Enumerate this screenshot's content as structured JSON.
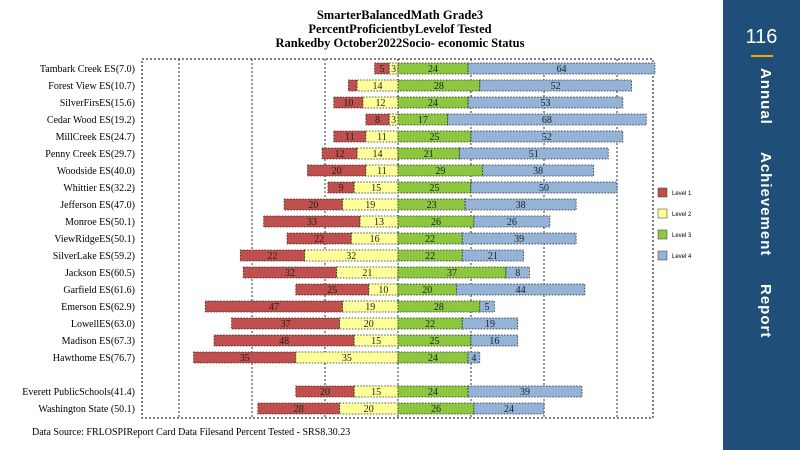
{
  "chart_data": {
    "type": "bar",
    "stacked": "diverging",
    "title_lines": [
      "SmarterBalancedMath Grade3",
      "PercentProficientbyLevelof Tested",
      "Rankedby October2022Socio- economic Status"
    ],
    "categories": [
      "Tambark Creek ES(7.0)",
      "Forest View ES(10.7)",
      "SilverFirsES(15.6)",
      "Cedar Wood ES(19.2)",
      "MillCreek ES(24.7)",
      "Penny Creek ES(29.7)",
      "Woodside ES(40.0)",
      "Whittier ES(32.2)",
      "Jefferson   ES(47.0)",
      "Monroe  ES(50.1)",
      "ViewRidgeES(50.1)",
      "SilverLake ES(59.2)",
      "Jackson ES(60.5)",
      "Garfield  ES(61.6)",
      "Emerson ES(62.9)",
      "LowellES(63.0)",
      "Madison ES(67.3)",
      "Hawthome  ES(76.7)",
      "",
      "Everett  PublicSchools(41.4)",
      "Washington State (50.1)"
    ],
    "series": [
      {
        "name": "Level 1",
        "color": "#c0504d",
        "values": [
          5,
          3,
          10,
          8,
          11,
          12,
          20,
          9,
          20,
          33,
          22,
          22,
          32,
          25,
          47,
          37,
          48,
          35,
          null,
          20,
          28
        ]
      },
      {
        "name": "Level 2",
        "color": "#ffff99",
        "values": [
          3,
          14,
          12,
          3,
          11,
          14,
          11,
          15,
          19,
          13,
          16,
          32,
          21,
          10,
          19,
          20,
          15,
          35,
          null,
          15,
          20
        ]
      },
      {
        "name": "Level 3",
        "color": "#8dc63f",
        "values": [
          24,
          28,
          24,
          17,
          25,
          21,
          29,
          25,
          23,
          26,
          22,
          22,
          37,
          20,
          28,
          22,
          25,
          24,
          null,
          24,
          26
        ]
      },
      {
        "name": "Level 4",
        "color": "#95b3d7",
        "values": [
          64,
          52,
          53,
          68,
          52,
          51,
          38,
          50,
          38,
          26,
          39,
          21,
          8,
          44,
          5,
          19,
          16,
          4,
          null,
          39,
          24
        ]
      }
    ],
    "data_labels": {
      "Level 1": [
        "5",
        "",
        "10",
        "8",
        "11",
        "12",
        "20",
        "9",
        "20",
        "33",
        "22",
        "22",
        "32",
        "25",
        "47",
        "37",
        "48",
        "35",
        "",
        "20",
        "28"
      ],
      "Level 2": [
        "3",
        "14",
        "12",
        "3",
        "11",
        "14",
        "11",
        "15",
        "19",
        "13",
        "16",
        "32",
        "21",
        "10",
        "19",
        "20",
        "15",
        "35",
        "",
        "15",
        "20"
      ],
      "Level 3": [
        "24",
        "28",
        "24",
        "17",
        "25",
        "21",
        "29",
        "25",
        "23",
        "26",
        "22",
        "22",
        "37",
        "20",
        "28",
        "22",
        "25",
        "24",
        "",
        "24",
        "26"
      ],
      "Level 4": [
        "64",
        "52",
        "53",
        "68",
        "52",
        "51",
        "38",
        "50",
        "38",
        "26",
        "39",
        "21",
        "8",
        "44",
        "5",
        "19",
        "16",
        "4",
        "",
        "39",
        "24"
      ]
    },
    "xlim": [
      -100,
      150
    ],
    "xticks": [
      -100,
      -75,
      -50,
      -25,
      0,
      25,
      50,
      75,
      100,
      125,
      150
    ],
    "grid": true,
    "legend_position": "right"
  },
  "source_note": "Data Source: FRLOSPIReport Card Data Filesand Percent  Tested - SRS8.30.23",
  "sidebar": {
    "page_number": "116",
    "words": [
      "Annual",
      "Achievement",
      "Report"
    ],
    "accent_color": "#f4a300",
    "background_color": "#1f4e79"
  }
}
